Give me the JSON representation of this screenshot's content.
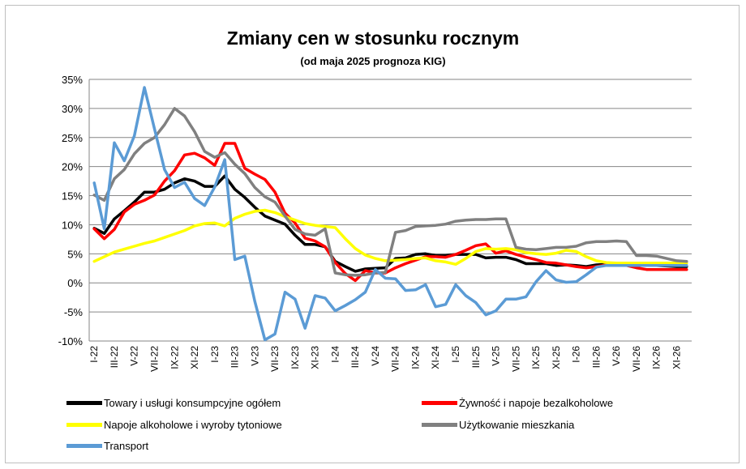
{
  "chart_data": {
    "type": "line",
    "title": "Zmiany cen w stosunku  rocznym",
    "subtitle": "(od maja  2025 prognoza  KIG)",
    "ylim": [
      -10,
      35
    ],
    "ytick_labels": [
      "-10%",
      "-5%",
      "0%",
      "5%",
      "10%",
      "15%",
      "20%",
      "25%",
      "30%",
      "35%"
    ],
    "ytick_values": [
      -10,
      -5,
      0,
      5,
      10,
      15,
      20,
      25,
      30,
      35
    ],
    "grid": true,
    "legend_position": "bottom",
    "categories": [
      "I-22",
      "II-22",
      "III-22",
      "IV-22",
      "V-22",
      "VI-22",
      "VII-22",
      "VIII-22",
      "IX-22",
      "X-22",
      "XI-22",
      "XII-22",
      "I-23",
      "II-23",
      "III-23",
      "IV-23",
      "V-23",
      "VI-23",
      "VII-23",
      "VIII-23",
      "IX-23",
      "X-23",
      "XI-23",
      "XII-23",
      "I-24",
      "II-24",
      "III-24",
      "IV-24",
      "V-24",
      "VI-24",
      "VII-24",
      "VIII-24",
      "IX-24",
      "X-24",
      "XI-24",
      "XII-24",
      "I-25",
      "II-25",
      "III-25",
      "IV-25",
      "V-25",
      "VI-25",
      "VII-25",
      "VIII-25",
      "IX-25",
      "X-25",
      "XI-25",
      "XII-25",
      "I-26",
      "II-26",
      "III-26",
      "IV-26",
      "V-26",
      "VI-26",
      "VII-26",
      "VIII-26",
      "IX-26",
      "X-26",
      "XI-26",
      "XII-26"
    ],
    "xtick_labels": [
      "I-22",
      "III-22",
      "V-22",
      "VII-22",
      "IX-22",
      "XI-22",
      "I-23",
      "III-23",
      "V-23",
      "VII-23",
      "IX-23",
      "XI-23",
      "I-24",
      "III-24",
      "V-24",
      "VII-24",
      "IX-24",
      "XI-24",
      "I-25",
      "III-25",
      "V-25",
      "VII-25",
      "IX-25",
      "XI-25",
      "I-26",
      "III-26",
      "V-26",
      "VII-26",
      "IX-26",
      "XI-26"
    ],
    "series": [
      {
        "name": "Towary i usługi konsumpcyjne ogółem",
        "color": "#000000",
        "values": [
          9.4,
          8.5,
          11.0,
          12.4,
          13.9,
          15.6,
          15.6,
          16.1,
          17.2,
          17.9,
          17.5,
          16.6,
          16.6,
          18.4,
          16.1,
          14.7,
          13.0,
          11.5,
          10.8,
          10.1,
          8.2,
          6.6,
          6.6,
          6.2,
          3.7,
          2.8,
          2.0,
          2.4,
          2.5,
          2.6,
          4.2,
          4.3,
          4.9,
          5.0,
          4.7,
          4.7,
          4.9,
          4.9,
          4.9,
          4.3,
          4.4,
          4.4,
          4.0,
          3.3,
          3.3,
          3.3,
          3.0,
          3.1,
          3.0,
          2.8,
          3.1,
          3.2,
          3.2,
          3.4,
          3.1,
          3.1,
          3.0,
          2.9,
          2.8,
          2.8
        ]
      },
      {
        "name": "Żywność i napoje bezalkoholowe",
        "color": "#ff0000",
        "values": [
          9.3,
          7.6,
          9.2,
          12.2,
          13.5,
          14.2,
          15.1,
          17.5,
          19.3,
          22.0,
          22.3,
          21.5,
          20.2,
          24.0,
          24.0,
          19.7,
          18.7,
          17.8,
          15.6,
          12.0,
          10.3,
          7.7,
          7.2,
          6.2,
          3.5,
          1.6,
          0.4,
          2.1,
          1.7,
          1.7,
          2.6,
          3.3,
          3.9,
          4.5,
          4.5,
          4.4,
          4.9,
          5.6,
          6.4,
          6.7,
          5.1,
          5.5,
          4.9,
          4.4,
          4.0,
          3.5,
          3.4,
          3.1,
          2.8,
          2.6,
          2.8,
          3.1,
          3.2,
          3.0,
          2.6,
          2.3,
          2.3,
          2.3,
          2.3,
          2.3
        ]
      },
      {
        "name": "Napoje alkoholowe i wyroby tytoniowe",
        "color": "#ffff00",
        "values": [
          3.7,
          4.5,
          5.3,
          5.8,
          6.3,
          6.8,
          7.2,
          7.8,
          8.4,
          9.0,
          9.8,
          10.2,
          10.3,
          9.8,
          11.1,
          11.8,
          12.3,
          12.5,
          12.1,
          11.4,
          10.8,
          10.2,
          9.9,
          9.7,
          9.5,
          7.6,
          5.9,
          4.8,
          4.2,
          3.8,
          3.9,
          4.0,
          4.2,
          4.3,
          3.8,
          3.6,
          3.2,
          4.2,
          5.4,
          5.9,
          5.8,
          5.9,
          5.7,
          5.2,
          5.0,
          4.9,
          5.1,
          5.6,
          5.4,
          4.5,
          3.8,
          3.5,
          3.4,
          3.4,
          3.4,
          3.4,
          3.4,
          3.4,
          3.4,
          3.4
        ]
      },
      {
        "name": "Użytkowanie mieszkania",
        "color": "#808080",
        "values": [
          15.1,
          14.2,
          17.9,
          19.5,
          22.2,
          24.0,
          25.0,
          27.2,
          30.0,
          28.7,
          26.0,
          22.6,
          21.6,
          22.4,
          20.4,
          18.8,
          16.4,
          14.8,
          13.9,
          11.5,
          9.2,
          8.4,
          8.2,
          9.3,
          1.7,
          1.4,
          1.3,
          1.4,
          1.7,
          1.8,
          8.7,
          9.0,
          9.7,
          9.8,
          9.9,
          10.1,
          10.6,
          10.8,
          10.9,
          10.9,
          11.0,
          11.0,
          6.1,
          5.8,
          5.7,
          5.9,
          6.1,
          6.1,
          6.3,
          6.9,
          7.1,
          7.1,
          7.2,
          7.1,
          4.7,
          4.7,
          4.6,
          4.2,
          3.8,
          3.7
        ]
      },
      {
        "name": "Transport",
        "color": "#5b9bd5",
        "values": [
          17.2,
          9.3,
          24.1,
          21.0,
          25.3,
          33.6,
          26.5,
          19.5,
          16.4,
          17.3,
          14.5,
          13.3,
          16.5,
          21.2,
          4.0,
          4.6,
          -3.2,
          -9.8,
          -8.8,
          -1.6,
          -2.8,
          -7.8,
          -2.2,
          -2.6,
          -4.8,
          -3.9,
          -2.9,
          -1.6,
          2.3,
          0.8,
          0.7,
          -1.3,
          -1.2,
          -0.3,
          -4.1,
          -3.7,
          -0.3,
          -2.2,
          -3.4,
          -5.5,
          -4.8,
          -2.8,
          -2.8,
          -2.4,
          0.2,
          2.1,
          0.5,
          0.1,
          0.2,
          1.4,
          2.7,
          3.0,
          3.0,
          3.0,
          3.0,
          3.0,
          3.0,
          3.0,
          3.0,
          3.0
        ]
      }
    ]
  }
}
